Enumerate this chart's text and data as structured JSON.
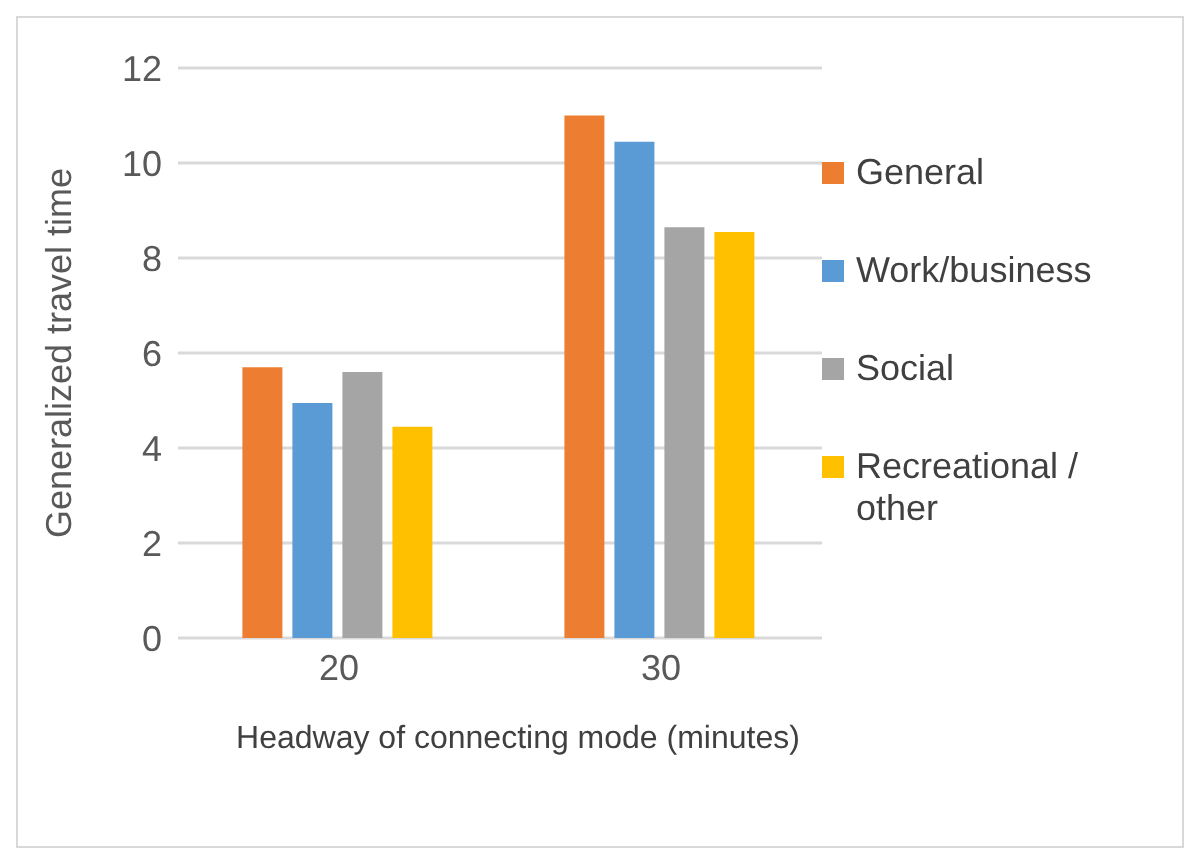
{
  "chart_data": {
    "type": "bar",
    "xlabel": "Headway of connecting mode (minutes)",
    "ylabel": "Generalized travel time",
    "categories": [
      "20",
      "30"
    ],
    "series": [
      {
        "name": "General",
        "color": "#ed7d31",
        "values": [
          5.7,
          11.0
        ]
      },
      {
        "name": "Work/business",
        "color": "#5b9bd5",
        "values": [
          4.95,
          10.45
        ]
      },
      {
        "name": "Social",
        "color": "#a5a5a5",
        "values": [
          5.6,
          8.65
        ]
      },
      {
        "name": "Recreational / other",
        "color": "#ffc000",
        "values": [
          4.45,
          8.55
        ]
      }
    ],
    "ylim": [
      0,
      12
    ],
    "yticks": [
      0,
      2,
      4,
      6,
      8,
      10,
      12
    ],
    "grid": "y",
    "legend": "right"
  }
}
